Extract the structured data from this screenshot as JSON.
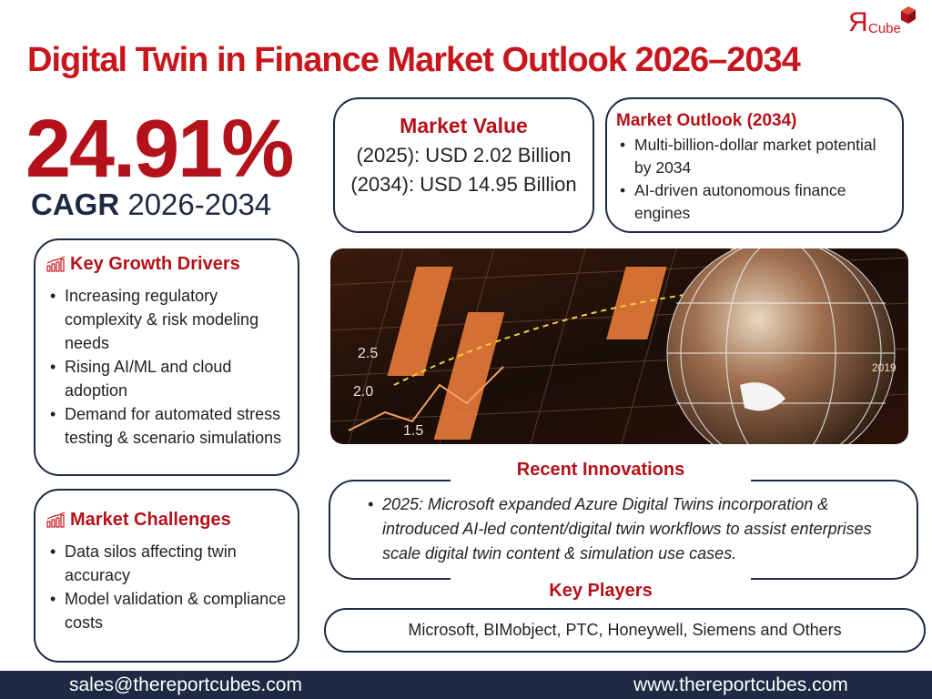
{
  "title": "Digital Twin in Finance Market Outlook 2026–2034",
  "logo": {
    "text": "Cube",
    "letter": "Я"
  },
  "cagr": {
    "value": "24.91%",
    "label": "CAGR",
    "period": "2026-2034"
  },
  "market_value": {
    "heading": "Market Value",
    "lines": [
      "(2025): USD 2.02 Billion",
      "(2034): USD 14.95 Billion"
    ]
  },
  "market_outlook": {
    "heading": "Market Outlook (2034)",
    "items": [
      "Multi-billion-dollar market potential by 2034",
      "AI-driven autonomous finance engines"
    ]
  },
  "growth_drivers": {
    "heading": "Key Growth Drivers",
    "icon": "bar-chart-growth-icon",
    "items": [
      "Increasing regulatory complexity & risk modeling needs",
      "Rising AI/ML and cloud adoption",
      "Demand for automated stress testing & scenario simulations"
    ]
  },
  "challenges": {
    "heading": "Market Challenges",
    "icon": "bar-chart-growth-icon",
    "items": [
      "Data silos affecting twin accuracy",
      "Model validation & compliance costs"
    ]
  },
  "recent_innovations": {
    "heading": "Recent Innovations",
    "items": [
      "2025: Microsoft expanded Azure Digital Twins incorporation & introduced AI-led content/digital twin workflows to assist enterprises scale digital twin content & simulation use cases."
    ]
  },
  "key_players": {
    "heading": "Key Players",
    "text": "Microsoft, BIMobject, PTC, Honeywell, Siemens and Others"
  },
  "footer": {
    "email": "sales@thereportcubes.com",
    "website": "www.thereportcubes.com"
  },
  "image": {
    "axis_labels": [
      "2.5",
      "2.0",
      "1.5",
      "2019"
    ]
  },
  "colors": {
    "accent": "#c8161d",
    "navy": "#1e2a44"
  }
}
